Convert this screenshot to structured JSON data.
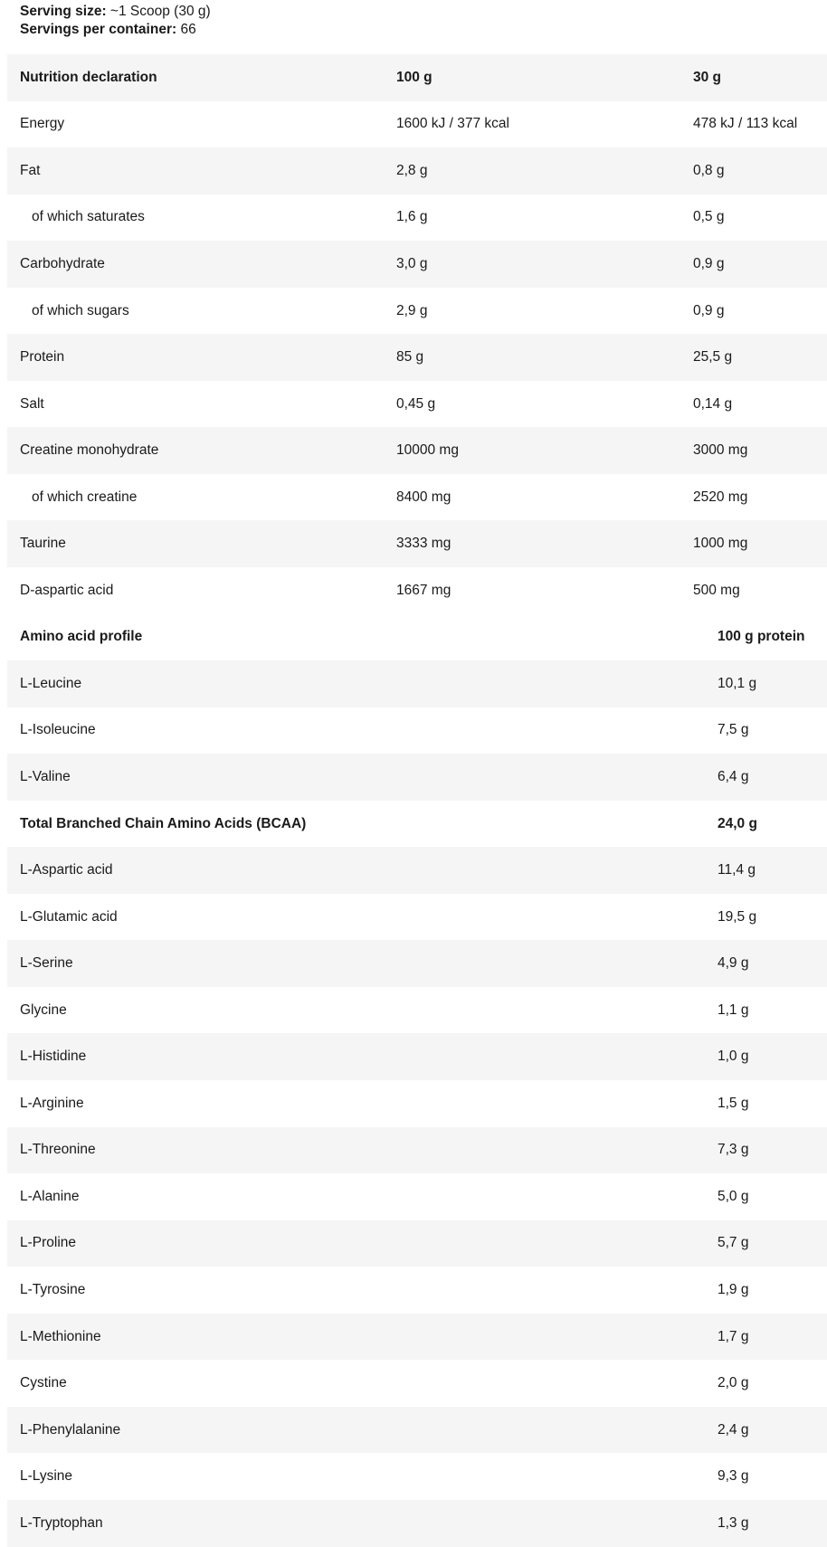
{
  "serving": {
    "size_label": "Serving size:",
    "size_value": " ~1 Scoop (30 g)",
    "per_container_label": "Servings per container:",
    "per_container_value": " 66"
  },
  "nutrition": {
    "header": [
      "Nutrition declaration",
      "100 g",
      "30 g"
    ],
    "rows": [
      {
        "name": "Energy",
        "per100": "1600 kJ / 377 kcal",
        "per30": "478 kJ / 113 kcal",
        "indent": false
      },
      {
        "name": "Fat",
        "per100": "2,8 g",
        "per30": "0,8 g",
        "indent": false
      },
      {
        "name": "of which saturates",
        "per100": "1,6 g",
        "per30": "0,5 g",
        "indent": true
      },
      {
        "name": "Carbohydrate",
        "per100": "3,0 g",
        "per30": "0,9 g",
        "indent": false
      },
      {
        "name": "of which sugars",
        "per100": "2,9 g",
        "per30": "0,9 g",
        "indent": true
      },
      {
        "name": "Protein",
        "per100": "85 g",
        "per30": "25,5 g",
        "indent": false
      },
      {
        "name": "Salt",
        "per100": "0,45 g",
        "per30": "0,14 g",
        "indent": false
      },
      {
        "name": "Creatine monohydrate",
        "per100": "10000 mg",
        "per30": "3000 mg",
        "indent": false
      },
      {
        "name": "of which creatine",
        "per100": "8400 mg",
        "per30": "2520 mg",
        "indent": true
      },
      {
        "name": "Taurine",
        "per100": "3333 mg",
        "per30": "1000 mg",
        "indent": false
      },
      {
        "name": "D-aspartic acid",
        "per100": "1667 mg",
        "per30": "500 mg",
        "indent": false
      }
    ]
  },
  "amino": {
    "header": [
      "Amino acid profile",
      "100 g protein"
    ],
    "rows": [
      {
        "name": "L-Leucine",
        "value": "10,1 g"
      },
      {
        "name": "L-Isoleucine",
        "value": "7,5 g"
      },
      {
        "name": "L-Valine",
        "value": "6,4 g"
      },
      {
        "name": "Total Branched Chain Amino Acids (BCAA)",
        "value": "24,0 g",
        "bold": true
      },
      {
        "name": "L-Aspartic acid",
        "value": "11,4 g"
      },
      {
        "name": "L-Glutamic acid",
        "value": "19,5 g"
      },
      {
        "name": "L-Serine",
        "value": "4,9 g"
      },
      {
        "name": "Glycine",
        "value": "1,1 g"
      },
      {
        "name": "L-Histidine",
        "value": "1,0 g"
      },
      {
        "name": "L-Arginine",
        "value": "1,5 g"
      },
      {
        "name": "L-Threonine",
        "value": "7,3 g"
      },
      {
        "name": "L-Alanine",
        "value": "5,0 g"
      },
      {
        "name": "L-Proline",
        "value": "5,7 g"
      },
      {
        "name": "L-Tyrosine",
        "value": "1,9 g"
      },
      {
        "name": "L-Methionine",
        "value": "1,7 g"
      },
      {
        "name": "Cystine",
        "value": "2,0 g"
      },
      {
        "name": "L-Phenylalanine",
        "value": "2,4 g"
      },
      {
        "name": "L-Lysine",
        "value": "9,3 g"
      },
      {
        "name": "L-Tryptophan",
        "value": "1,3 g"
      }
    ]
  },
  "colors": {
    "stripe": "#f5f5f5",
    "text": "#1a1a1a"
  }
}
